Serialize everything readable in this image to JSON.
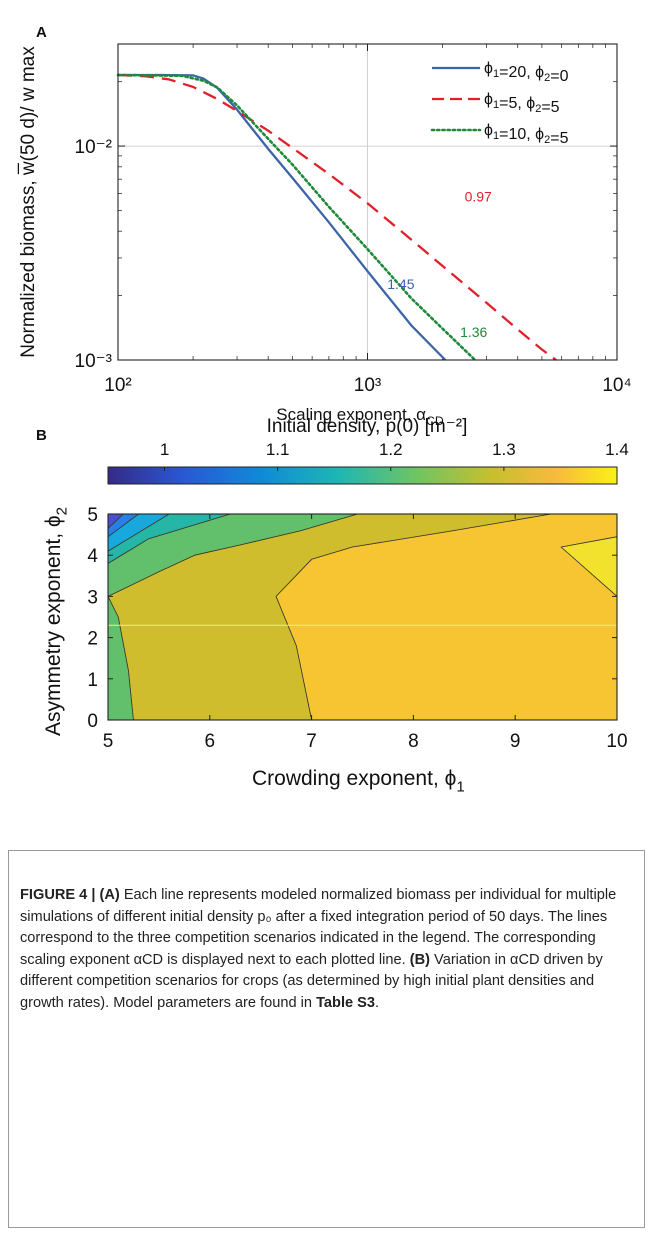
{
  "chart_data": [
    {
      "panel": "A",
      "type": "line",
      "x_scale": "log",
      "y_scale": "log",
      "xlim": [
        100,
        10000
      ],
      "ylim": [
        0.001,
        0.03
      ],
      "xlabel": "Initial density, p(0) [m⁻²]",
      "ylabel": "Normalized biomass, w̅(50 d)/ w max",
      "x_ticks": [
        "10²",
        "10³",
        "10⁴"
      ],
      "y_ticks": [
        "10⁻³",
        "10⁻²"
      ],
      "legend_position": "top-right",
      "grid": "major lines at x = 10³ and y = 10⁻²",
      "series": [
        {
          "name": "ϕ₁=20, ϕ₂=0",
          "color": "#3c64a8",
          "style": "solid",
          "annotation": "1.45",
          "points": [
            [
              100,
              0.0215
            ],
            [
              150,
              0.0215
            ],
            [
              200,
              0.0214
            ],
            [
              220,
              0.0207
            ],
            [
              250,
              0.0187
            ],
            [
              300,
              0.0148
            ],
            [
              400,
              0.0097
            ],
            [
              500,
              0.0071
            ],
            [
              700,
              0.0044
            ],
            [
              1000,
              0.0026
            ],
            [
              1500,
              0.00145
            ],
            [
              2050,
              0.001
            ]
          ]
        },
        {
          "name": "ϕ₁=5, ϕ₂=5",
          "color": "#e0202a",
          "style": "dashed",
          "annotation": "0.97",
          "points": [
            [
              100,
              0.0215
            ],
            [
              130,
              0.0212
            ],
            [
              160,
              0.0205
            ],
            [
              200,
              0.0189
            ],
            [
              250,
              0.0166
            ],
            [
              300,
              0.0146
            ],
            [
              400,
              0.0118
            ],
            [
              500,
              0.0098
            ],
            [
              700,
              0.0074
            ],
            [
              1000,
              0.0054
            ],
            [
              1500,
              0.00365
            ],
            [
              2000,
              0.00275
            ],
            [
              3000,
              0.00185
            ],
            [
              4000,
              0.00139
            ],
            [
              5000,
              0.00112
            ],
            [
              5700,
              0.001
            ]
          ]
        },
        {
          "name": "ϕ₁=10, ϕ₂=5",
          "color": "#1e8a3a",
          "style": "dotted",
          "annotation": "1.36",
          "points": [
            [
              100,
              0.0215
            ],
            [
              180,
              0.0213
            ],
            [
              220,
              0.0202
            ],
            [
              250,
              0.0188
            ],
            [
              300,
              0.0155
            ],
            [
              400,
              0.0108
            ],
            [
              500,
              0.0082
            ],
            [
              700,
              0.0052
            ],
            [
              1000,
              0.0033
            ],
            [
              1500,
              0.00194
            ],
            [
              2000,
              0.0014
            ],
            [
              2700,
              0.001
            ]
          ]
        }
      ]
    },
    {
      "panel": "B",
      "type": "heatmap",
      "subtype": "filled contour",
      "xlabel": "Crowding exponent, ϕ₁",
      "ylabel": "Asymmetry exponent, ϕ₂",
      "xlim": [
        5,
        10
      ],
      "ylim": [
        0,
        5
      ],
      "x_ticks": [
        5,
        6,
        7,
        8,
        9,
        10
      ],
      "y_ticks": [
        0,
        1,
        2,
        3,
        4,
        5
      ],
      "colorbar": {
        "label": "Scaling exponent, αCD",
        "range": [
          0.95,
          1.4
        ],
        "ticks": [
          1,
          1.1,
          1.2,
          1.3,
          1.4
        ],
        "position": "top"
      },
      "regions": [
        {
          "level": 1.38,
          "color": "#f2e22e",
          "points": [
            [
              9.45,
              4.2
            ],
            [
              10,
              4.45
            ],
            [
              10,
              3.0
            ]
          ]
        },
        {
          "level": 1.33,
          "color": "#f7c531",
          "points": [
            [
              7.0,
              0
            ],
            [
              10,
              0
            ],
            [
              10,
              3.0
            ],
            [
              9.45,
              4.2
            ],
            [
              10,
              4.45
            ],
            [
              10,
              5
            ],
            [
              9.35,
              5
            ],
            [
              8.4,
              4.6
            ],
            [
              7.4,
              4.2
            ],
            [
              7.0,
              3.9
            ],
            [
              6.65,
              3.0
            ],
            [
              6.85,
              1.8
            ]
          ]
        },
        {
          "level": 1.28,
          "color": "#cfbd2e",
          "points": [
            [
              5.25,
              0
            ],
            [
              7.0,
              0
            ],
            [
              6.85,
              1.8
            ],
            [
              6.65,
              3.0
            ],
            [
              7.0,
              3.9
            ],
            [
              7.4,
              4.2
            ],
            [
              8.4,
              4.6
            ],
            [
              9.35,
              5
            ],
            [
              7.45,
              5
            ],
            [
              6.9,
              4.6
            ],
            [
              6.3,
              4.25
            ],
            [
              5.85,
              4.0
            ],
            [
              5.5,
              3.6
            ],
            [
              5.0,
              3.0
            ],
            [
              5.1,
              2.5
            ],
            [
              5.2,
              1.2
            ]
          ]
        },
        {
          "level": 1.22,
          "color": "#62bf6c",
          "points": [
            [
              5.0,
              0
            ],
            [
              5.25,
              0
            ],
            [
              5.2,
              1.2
            ],
            [
              5.1,
              2.5
            ],
            [
              5.0,
              3.0
            ]
          ]
        },
        {
          "level": 1.22,
          "color": "#62bf6c",
          "points": [
            [
              5.0,
              3.0
            ],
            [
              5.5,
              3.6
            ],
            [
              5.85,
              4.0
            ],
            [
              6.3,
              4.25
            ],
            [
              6.9,
              4.6
            ],
            [
              7.45,
              5
            ],
            [
              6.2,
              5
            ],
            [
              5.4,
              4.4
            ],
            [
              5.0,
              3.8
            ]
          ]
        },
        {
          "level": 1.17,
          "color": "#25b6a8",
          "points": [
            [
              5.0,
              3.8
            ],
            [
              5.4,
              4.4
            ],
            [
              6.2,
              5
            ],
            [
              5.6,
              5
            ],
            [
              5.0,
              4.1
            ]
          ]
        },
        {
          "level": 1.12,
          "color": "#18a8dc",
          "points": [
            [
              5.0,
              4.1
            ],
            [
              5.6,
              5
            ],
            [
              5.3,
              5
            ],
            [
              5.0,
              4.45
            ]
          ]
        },
        {
          "level": 1.07,
          "color": "#2a7fe6",
          "points": [
            [
              5.0,
              4.45
            ],
            [
              5.3,
              5
            ],
            [
              5.15,
              5
            ],
            [
              5.0,
              4.65
            ]
          ]
        },
        {
          "level": 1.02,
          "color": "#4a4fce",
          "points": [
            [
              5.0,
              4.65
            ],
            [
              5.15,
              5
            ],
            [
              5.0,
              5
            ]
          ]
        }
      ]
    }
  ],
  "panel_a_label": "A",
  "panel_b_label": "B",
  "caption": {
    "figure_label": "FIGURE 4 | ",
    "a_label": "(A)",
    "text_1": " Each line represents modeled normalized biomass per individual for multiple simulations of different initial density p₀ after a fixed integration period of 50 days. The lines correspond to the three competition scenarios indicated in the legend. The corresponding scaling exponent αCD is displayed next to each plotted line. ",
    "b_label": "(B)",
    "text_2": " Variation in αCD driven by different competition scenarios for crops (as determined by high initial plant densities and growth rates). Model parameters are found in ",
    "table_ref": "Table S3",
    "text_3": "."
  }
}
